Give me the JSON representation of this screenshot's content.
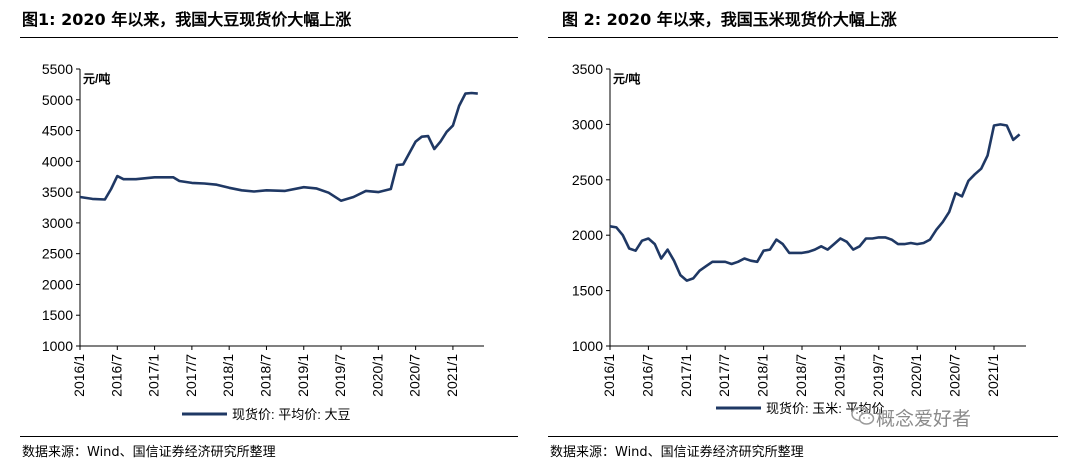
{
  "colors": {
    "line": "#1f3864",
    "axis": "#000000",
    "watermark": "#8a8a8a"
  },
  "figures": [
    {
      "title": "图1:  2020 年以来，我国大豆现货价大幅上涨",
      "source": "数据来源：Wind、国信证券经济研究所整理"
    },
    {
      "title": "图 2:    2020 年以来，我国玉米现货价大幅上涨",
      "source": "数据来源：Wind、国信证券经济研究所整理"
    }
  ],
  "watermark": {
    "text": "概念爱好者",
    "icon": "wechat-icon"
  },
  "chart_data": [
    {
      "type": "line",
      "unit_label": "元/吨",
      "xlim": [
        "2016-01",
        "2021-06"
      ],
      "ylim": [
        1000,
        5500
      ],
      "yticks": [
        1000,
        1500,
        2000,
        2500,
        3000,
        3500,
        4000,
        4500,
        5000,
        5500
      ],
      "xtick_labels": [
        "2016/1",
        "2016/7",
        "2017/1",
        "2017/7",
        "2018/1",
        "2018/7",
        "2019/1",
        "2019/7",
        "2020/1",
        "2020/7",
        "2021/1"
      ],
      "legend": "top-bottom-center",
      "series": [
        {
          "name": "现货价: 平均价: 大豆",
          "x": [
            "2016-01",
            "2016-03",
            "2016-05",
            "2016-06",
            "2016-07",
            "2016-08",
            "2016-10",
            "2017-01",
            "2017-04",
            "2017-05",
            "2017-07",
            "2017-09",
            "2017-11",
            "2018-01",
            "2018-03",
            "2018-05",
            "2018-07",
            "2018-10",
            "2019-01",
            "2019-03",
            "2019-05",
            "2019-07",
            "2019-09",
            "2019-11",
            "2020-01",
            "2020-03",
            "2020-04",
            "2020-05",
            "2020-07",
            "2020-08",
            "2020-09",
            "2020-10",
            "2020-11",
            "2020-12",
            "2021-01",
            "2021-02",
            "2021-03",
            "2021-04",
            "2021-05"
          ],
          "y": [
            3420,
            3390,
            3380,
            3550,
            3760,
            3710,
            3710,
            3740,
            3740,
            3680,
            3650,
            3640,
            3620,
            3570,
            3530,
            3510,
            3530,
            3520,
            3580,
            3560,
            3490,
            3360,
            3420,
            3520,
            3500,
            3550,
            3940,
            3950,
            4320,
            4400,
            4410,
            4200,
            4320,
            4480,
            4580,
            4900,
            5100,
            5110,
            5100
          ]
        }
      ]
    },
    {
      "type": "line",
      "unit_label": "元/吨",
      "xlim": [
        "2016-01",
        "2021-06"
      ],
      "ylim": [
        1000,
        3500
      ],
      "yticks": [
        1000,
        1500,
        2000,
        2500,
        3000,
        3500
      ],
      "xtick_labels": [
        "2016/1",
        "2016/7",
        "2017/1",
        "2017/7",
        "2018/1",
        "2018/7",
        "2019/1",
        "2019/7",
        "2020/1",
        "2020/7",
        "2021/1"
      ],
      "legend": "top-bottom-center",
      "series": [
        {
          "name": "现货价: 玉米: 平均价",
          "x": [
            "2016-01",
            "2016-02",
            "2016-03",
            "2016-04",
            "2016-05",
            "2016-06",
            "2016-07",
            "2016-08",
            "2016-09",
            "2016-10",
            "2016-11",
            "2016-12",
            "2017-01",
            "2017-02",
            "2017-03",
            "2017-04",
            "2017-05",
            "2017-06",
            "2017-07",
            "2017-08",
            "2017-09",
            "2017-10",
            "2017-11",
            "2017-12",
            "2018-01",
            "2018-02",
            "2018-03",
            "2018-04",
            "2018-05",
            "2018-06",
            "2018-07",
            "2018-08",
            "2018-09",
            "2018-10",
            "2018-11",
            "2018-12",
            "2019-01",
            "2019-02",
            "2019-03",
            "2019-04",
            "2019-05",
            "2019-06",
            "2019-07",
            "2019-08",
            "2019-09",
            "2019-10",
            "2019-11",
            "2019-12",
            "2020-01",
            "2020-02",
            "2020-03",
            "2020-04",
            "2020-05",
            "2020-06",
            "2020-07",
            "2020-08",
            "2020-09",
            "2020-10",
            "2020-11",
            "2020-12",
            "2021-01",
            "2021-02",
            "2021-03",
            "2021-04",
            "2021-05"
          ],
          "y": [
            2080,
            2070,
            2000,
            1880,
            1860,
            1950,
            1970,
            1920,
            1790,
            1870,
            1770,
            1640,
            1590,
            1610,
            1680,
            1720,
            1760,
            1760,
            1760,
            1740,
            1760,
            1790,
            1770,
            1760,
            1860,
            1870,
            1960,
            1920,
            1840,
            1840,
            1840,
            1850,
            1870,
            1900,
            1870,
            1920,
            1970,
            1940,
            1870,
            1900,
            1970,
            1970,
            1980,
            1980,
            1960,
            1920,
            1920,
            1930,
            1920,
            1930,
            1960,
            2050,
            2120,
            2210,
            2380,
            2350,
            2490,
            2550,
            2600,
            2720,
            2990,
            3000,
            2990,
            2860,
            2910
          ]
        }
      ]
    }
  ]
}
